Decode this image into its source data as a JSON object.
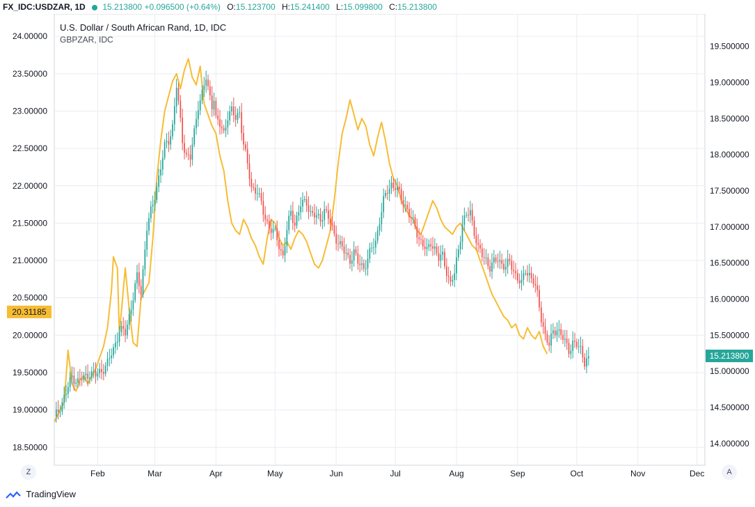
{
  "header": {
    "symbol": "FX_IDC:USDZAR, 1D",
    "last": "15.213800",
    "change": "+0.096500 (+0.64%)",
    "open_label": "O:",
    "open": "15.123700",
    "high_label": "H:",
    "high": "15.241400",
    "low_label": "L:",
    "low": "15.099800",
    "close_label": "C:",
    "close": "15.213800"
  },
  "legend": {
    "main_title": "U.S. Dollar / South African Rand, 1D, IDC",
    "compare_title": "GBPZAR, IDC"
  },
  "footer": {
    "brand": "TradingView"
  },
  "buttons": {
    "left": "Z",
    "right": "A"
  },
  "colors": {
    "up": "#26a69a",
    "down": "#ef5350",
    "compare": "#f7bc33",
    "grid": "#e9ecf1",
    "axis_text": "#131722"
  },
  "chart_data": {
    "type": "candlestick",
    "left_axis": {
      "label": "GBPZAR",
      "range": [
        18.26,
        24.3
      ],
      "ticks": [
        "18.50000",
        "19.00000",
        "19.50000",
        "20.00000",
        "20.50000",
        "21.00000",
        "21.50000",
        "22.00000",
        "22.50000",
        "23.00000",
        "23.50000",
        "24.00000"
      ],
      "tick_values": [
        18.5,
        19.0,
        19.5,
        20.0,
        20.5,
        21.0,
        21.5,
        22.0,
        22.5,
        23.0,
        23.5,
        24.0
      ],
      "current_value": "20.31185",
      "current_value_num": 20.31185
    },
    "right_axis": {
      "label": "USDZAR",
      "range": [
        13.7,
        19.95
      ],
      "ticks": [
        "14.000000",
        "14.500000",
        "15.000000",
        "15.500000",
        "16.000000",
        "16.500000",
        "17.000000",
        "17.500000",
        "18.000000",
        "18.500000",
        "19.000000",
        "19.500000"
      ],
      "tick_values": [
        14.0,
        14.5,
        15.0,
        15.5,
        16.0,
        16.5,
        17.0,
        17.5,
        18.0,
        18.5,
        19.0,
        19.5
      ],
      "current_value": "15.213800",
      "current_value_num": 15.2138
    },
    "x_axis": {
      "labels": [
        "Feb",
        "Mar",
        "Apr",
        "May",
        "Jun",
        "Jul",
        "Aug",
        "Sep",
        "Oct",
        "Nov",
        "Dec"
      ],
      "positions": [
        22,
        51,
        82,
        112,
        143,
        173,
        204,
        235,
        265,
        296,
        326
      ]
    },
    "day_range": [
      0,
      330
    ],
    "series": [
      {
        "type": "candles",
        "axis": "right",
        "points": [
          [
            0,
            14.34
          ],
          [
            3,
            14.52
          ],
          [
            6,
            14.7
          ],
          [
            9,
            14.93
          ],
          [
            12,
            14.86
          ],
          [
            15,
            14.91
          ],
          [
            18,
            14.98
          ],
          [
            21,
            14.94
          ],
          [
            24,
            15.02
          ],
          [
            27,
            15.1
          ],
          [
            30,
            15.31
          ],
          [
            33,
            15.57
          ],
          [
            36,
            15.53
          ],
          [
            39,
            15.9
          ],
          [
            42,
            16.3
          ],
          [
            44,
            16.1
          ],
          [
            47,
            17.0
          ],
          [
            50,
            17.3
          ],
          [
            53,
            17.7
          ],
          [
            56,
            18.1
          ],
          [
            58,
            18.2
          ],
          [
            60,
            18.4
          ],
          [
            62,
            18.95
          ],
          [
            63,
            18.7
          ],
          [
            65,
            18.2
          ],
          [
            67,
            18.0
          ],
          [
            69,
            17.95
          ],
          [
            71,
            18.3
          ],
          [
            73,
            18.7
          ],
          [
            75,
            18.85
          ],
          [
            77,
            19.05
          ],
          [
            78,
            18.9
          ],
          [
            80,
            18.7
          ],
          [
            81,
            18.8
          ],
          [
            82,
            18.5
          ],
          [
            84,
            18.4
          ],
          [
            86,
            18.3
          ],
          [
            88,
            18.55
          ],
          [
            90,
            18.6
          ],
          [
            92,
            18.5
          ],
          [
            94,
            18.6
          ],
          [
            96,
            18.15
          ],
          [
            98,
            17.85
          ],
          [
            100,
            17.55
          ],
          [
            103,
            17.5
          ],
          [
            106,
            17.2
          ],
          [
            109,
            17.0
          ],
          [
            112,
            16.9
          ],
          [
            114,
            16.75
          ],
          [
            116,
            16.6
          ],
          [
            118,
            16.95
          ],
          [
            120,
            17.2
          ],
          [
            122,
            17.05
          ],
          [
            125,
            17.3
          ],
          [
            128,
            17.35
          ],
          [
            130,
            17.2
          ],
          [
            132,
            17.15
          ],
          [
            135,
            17.1
          ],
          [
            137,
            17.25
          ],
          [
            140,
            17.05
          ],
          [
            142,
            16.9
          ],
          [
            145,
            16.75
          ],
          [
            147,
            16.65
          ],
          [
            150,
            16.55
          ],
          [
            152,
            16.65
          ],
          [
            154,
            16.5
          ],
          [
            157,
            16.45
          ],
          [
            159,
            16.55
          ],
          [
            161,
            16.7
          ],
          [
            163,
            16.8
          ],
          [
            165,
            17.1
          ],
          [
            167,
            17.35
          ],
          [
            169,
            17.5
          ],
          [
            171,
            17.6
          ],
          [
            173,
            17.55
          ],
          [
            175,
            17.45
          ],
          [
            177,
            17.35
          ],
          [
            179,
            17.25
          ],
          [
            181,
            17.1
          ],
          [
            183,
            17.0
          ],
          [
            185,
            16.85
          ],
          [
            187,
            16.75
          ],
          [
            189,
            16.65
          ],
          [
            191,
            16.8
          ],
          [
            193,
            16.7
          ],
          [
            195,
            16.55
          ],
          [
            197,
            16.6
          ],
          [
            199,
            16.4
          ],
          [
            201,
            16.2
          ],
          [
            203,
            16.35
          ],
          [
            205,
            16.7
          ],
          [
            207,
            17.05
          ],
          [
            209,
            17.15
          ],
          [
            211,
            17.2
          ],
          [
            213,
            16.95
          ],
          [
            215,
            16.7
          ],
          [
            217,
            16.6
          ],
          [
            219,
            16.55
          ],
          [
            221,
            16.45
          ],
          [
            223,
            16.5
          ],
          [
            225,
            16.55
          ],
          [
            227,
            16.5
          ],
          [
            229,
            16.45
          ],
          [
            231,
            16.5
          ],
          [
            233,
            16.4
          ],
          [
            235,
            16.3
          ],
          [
            237,
            16.2
          ],
          [
            239,
            16.4
          ],
          [
            241,
            16.35
          ],
          [
            243,
            16.25
          ],
          [
            245,
            16.05
          ],
          [
            247,
            15.75
          ],
          [
            249,
            15.5
          ],
          [
            251,
            15.35
          ],
          [
            253,
            15.55
          ],
          [
            255,
            15.6
          ],
          [
            257,
            15.5
          ],
          [
            259,
            15.4
          ],
          [
            261,
            15.3
          ],
          [
            263,
            15.4
          ],
          [
            265,
            15.35
          ],
          [
            267,
            15.3
          ],
          [
            269,
            15.15
          ],
          [
            271,
            15.21
          ]
        ]
      },
      {
        "type": "line",
        "axis": "left",
        "points": [
          [
            0,
            18.84
          ],
          [
            3,
            19.0
          ],
          [
            5,
            19.1
          ],
          [
            7,
            19.8
          ],
          [
            9,
            19.35
          ],
          [
            11,
            19.25
          ],
          [
            13,
            19.4
          ],
          [
            15,
            19.45
          ],
          [
            17,
            19.35
          ],
          [
            19,
            19.45
          ],
          [
            21,
            19.55
          ],
          [
            23,
            19.7
          ],
          [
            25,
            19.85
          ],
          [
            27,
            20.1
          ],
          [
            29,
            20.6
          ],
          [
            30,
            21.05
          ],
          [
            32,
            20.9
          ],
          [
            33,
            20.05
          ],
          [
            34,
            20.3
          ],
          [
            36,
            20.9
          ],
          [
            38,
            20.35
          ],
          [
            40,
            19.9
          ],
          [
            42,
            19.85
          ],
          [
            44,
            20.5
          ],
          [
            46,
            20.6
          ],
          [
            48,
            20.7
          ],
          [
            50,
            21.3
          ],
          [
            52,
            22.1
          ],
          [
            54,
            22.6
          ],
          [
            56,
            23.0
          ],
          [
            58,
            23.2
          ],
          [
            60,
            23.4
          ],
          [
            62,
            23.5
          ],
          [
            64,
            23.3
          ],
          [
            66,
            23.55
          ],
          [
            68,
            23.7
          ],
          [
            70,
            23.45
          ],
          [
            72,
            23.35
          ],
          [
            74,
            23.6
          ],
          [
            76,
            23.1
          ],
          [
            78,
            22.95
          ],
          [
            80,
            22.8
          ],
          [
            82,
            22.7
          ],
          [
            84,
            22.4
          ],
          [
            86,
            22.2
          ],
          [
            88,
            21.8
          ],
          [
            90,
            21.5
          ],
          [
            92,
            21.4
          ],
          [
            94,
            21.35
          ],
          [
            96,
            21.55
          ],
          [
            98,
            21.45
          ],
          [
            100,
            21.3
          ],
          [
            102,
            21.2
          ],
          [
            104,
            21.05
          ],
          [
            106,
            20.95
          ],
          [
            108,
            21.3
          ],
          [
            110,
            21.55
          ],
          [
            112,
            21.5
          ],
          [
            114,
            21.3
          ],
          [
            116,
            21.2
          ],
          [
            118,
            21.25
          ],
          [
            120,
            21.15
          ],
          [
            122,
            21.3
          ],
          [
            124,
            21.4
          ],
          [
            126,
            21.35
          ],
          [
            128,
            21.25
          ],
          [
            130,
            21.1
          ],
          [
            132,
            20.95
          ],
          [
            134,
            20.9
          ],
          [
            136,
            21.0
          ],
          [
            138,
            21.2
          ],
          [
            140,
            21.4
          ],
          [
            142,
            21.8
          ],
          [
            144,
            22.3
          ],
          [
            146,
            22.7
          ],
          [
            148,
            22.9
          ],
          [
            150,
            23.15
          ],
          [
            152,
            22.95
          ],
          [
            154,
            22.75
          ],
          [
            156,
            22.9
          ],
          [
            158,
            22.8
          ],
          [
            160,
            22.55
          ],
          [
            162,
            22.4
          ],
          [
            164,
            22.65
          ],
          [
            166,
            22.85
          ],
          [
            168,
            22.6
          ],
          [
            170,
            22.3
          ],
          [
            172,
            22.1
          ],
          [
            174,
            22.0
          ],
          [
            176,
            21.8
          ],
          [
            178,
            21.7
          ],
          [
            180,
            21.6
          ],
          [
            182,
            21.55
          ],
          [
            184,
            21.4
          ],
          [
            186,
            21.35
          ],
          [
            188,
            21.5
          ],
          [
            190,
            21.65
          ],
          [
            192,
            21.8
          ],
          [
            194,
            21.7
          ],
          [
            196,
            21.55
          ],
          [
            198,
            21.45
          ],
          [
            200,
            21.4
          ],
          [
            202,
            21.35
          ],
          [
            204,
            21.45
          ],
          [
            206,
            21.5
          ],
          [
            208,
            21.4
          ],
          [
            210,
            21.3
          ],
          [
            212,
            21.2
          ],
          [
            214,
            21.15
          ],
          [
            216,
            21.0
          ],
          [
            218,
            20.85
          ],
          [
            220,
            20.7
          ],
          [
            222,
            20.55
          ],
          [
            224,
            20.45
          ],
          [
            226,
            20.35
          ],
          [
            228,
            20.25
          ],
          [
            230,
            20.2
          ],
          [
            232,
            20.1
          ],
          [
            234,
            20.15
          ],
          [
            236,
            20.0
          ],
          [
            238,
            19.95
          ],
          [
            240,
            20.1
          ],
          [
            242,
            20.0
          ],
          [
            244,
            19.95
          ],
          [
            246,
            20.05
          ],
          [
            248,
            19.85
          ],
          [
            250,
            19.75
          ]
        ]
      }
    ]
  }
}
